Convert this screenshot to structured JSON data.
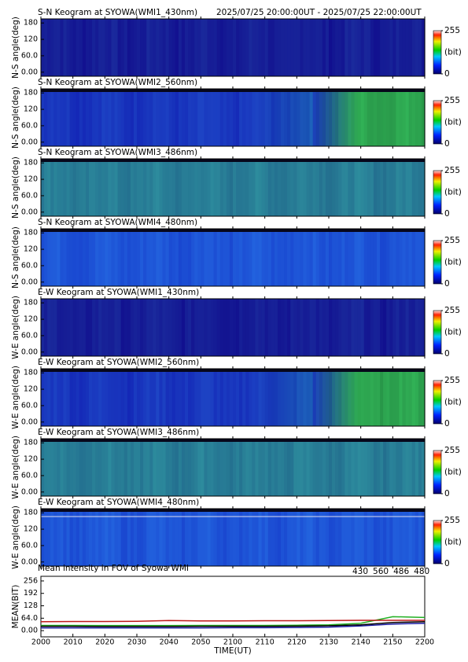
{
  "header": "2025/07/25 20:00:00UT - 2025/07/25 22:00:00UT",
  "chart_data": [
    {
      "type": "heatmap",
      "title": "S-N Keogram at SYOWA(WMI1_430nm)",
      "ylabel": "N-S angle(deg)",
      "ylim": [
        -15,
        195
      ],
      "yticks": [
        {
          "value": 0,
          "label": "0.00"
        },
        {
          "value": 60,
          "label": "60.0"
        },
        120,
        180
      ],
      "colorbar": {
        "lim": [
          0,
          255
        ],
        "ticks": [
          0,
          255
        ],
        "label": "(bit)"
      }
    },
    {
      "type": "heatmap",
      "title": "S-N Keogram at SYOWA(WMI2_560nm)",
      "ylabel": "N-S angle(deg)",
      "ylim": [
        -15,
        195
      ],
      "yticks": [
        {
          "value": 0,
          "label": "0.00"
        },
        {
          "value": 60,
          "label": "60.0"
        },
        120,
        180
      ],
      "colorbar": {
        "lim": [
          0,
          255
        ],
        "ticks": [
          0,
          255
        ],
        "label": "(bit)"
      }
    },
    {
      "type": "heatmap",
      "title": "S-N Keogram at SYOWA(WMI3_486nm)",
      "ylabel": "N-S angle(deg)",
      "ylim": [
        -15,
        195
      ],
      "yticks": [
        {
          "value": 0,
          "label": "0.00"
        },
        {
          "value": 60,
          "label": "60.0"
        },
        120,
        180
      ],
      "colorbar": {
        "lim": [
          0,
          255
        ],
        "ticks": [
          0,
          255
        ],
        "label": "(bit)"
      }
    },
    {
      "type": "heatmap",
      "title": "S-N Keogram at SYOWA(WMI4_480nm)",
      "ylabel": "N-S angle(deg)",
      "ylim": [
        -15,
        195
      ],
      "yticks": [
        {
          "value": 0,
          "label": "0.00"
        },
        {
          "value": 60,
          "label": "60.0"
        },
        120,
        180
      ],
      "colorbar": {
        "lim": [
          0,
          255
        ],
        "ticks": [
          0,
          255
        ],
        "label": "(bit)"
      }
    },
    {
      "type": "heatmap",
      "title": "E-W Keogram at SYOWA(WMI1_430nm)",
      "ylabel": "W-E angle(deg)",
      "ylim": [
        -15,
        195
      ],
      "yticks": [
        {
          "value": 0,
          "label": "0.00"
        },
        {
          "value": 60,
          "label": "60.0"
        },
        120,
        180
      ],
      "colorbar": {
        "lim": [
          0,
          255
        ],
        "ticks": [
          0,
          255
        ],
        "label": "(bit)"
      }
    },
    {
      "type": "heatmap",
      "title": "E-W Keogram at SYOWA(WMI2_560nm)",
      "ylabel": "W-E angle(deg)",
      "ylim": [
        -15,
        195
      ],
      "yticks": [
        {
          "value": 0,
          "label": "0.00"
        },
        {
          "value": 60,
          "label": "60.0"
        },
        120,
        180
      ],
      "colorbar": {
        "lim": [
          0,
          255
        ],
        "ticks": [
          0,
          255
        ],
        "label": "(bit)"
      }
    },
    {
      "type": "heatmap",
      "title": "E-W Keogram at SYOWA(WMI3_486nm)",
      "ylabel": "W-E angle(deg)",
      "ylim": [
        -15,
        195
      ],
      "yticks": [
        {
          "value": 0,
          "label": "0.00"
        },
        {
          "value": 60,
          "label": "60.0"
        },
        120,
        180
      ],
      "colorbar": {
        "lim": [
          0,
          255
        ],
        "ticks": [
          0,
          255
        ],
        "label": "(bit)"
      }
    },
    {
      "type": "heatmap",
      "title": "E-W Keogram at SYOWA(WMI4_480nm)",
      "ylabel": "W-E angle(deg)",
      "ylim": [
        -15,
        195
      ],
      "yticks": [
        {
          "value": 0,
          "label": "0.00"
        },
        {
          "value": 60,
          "label": "60.0"
        },
        120,
        180
      ],
      "colorbar": {
        "lim": [
          0,
          255
        ],
        "ticks": [
          0,
          255
        ],
        "label": "(bit)"
      }
    },
    {
      "type": "line",
      "title": "Mean intensity in FOV of Syowa WMI",
      "ylabel": "MEAN(BIT)",
      "xlabel": "TIME(UT)",
      "categories": [
        "2000",
        "2010",
        "2020",
        "2030",
        "2040",
        "2050",
        "2100",
        "2110",
        "2120",
        "2130",
        "2140",
        "2150",
        "2200"
      ],
      "ylim": [
        -32,
        280
      ],
      "yticks": [
        {
          "value": 0,
          "label": "0.00"
        },
        {
          "value": 64,
          "label": "64.0"
        },
        128,
        192,
        256
      ],
      "series": [
        {
          "name": "430",
          "color": "#1a1aa0",
          "values": [
            14,
            14,
            14,
            14,
            14,
            14,
            15,
            15,
            16,
            18,
            24,
            34,
            38
          ]
        },
        {
          "name": "560",
          "color": "#22b022",
          "values": [
            27,
            27,
            26,
            26,
            26,
            27,
            27,
            27,
            28,
            30,
            38,
            72,
            68
          ]
        },
        {
          "name": "486",
          "color": "#c01818",
          "values": [
            46,
            47,
            47,
            48,
            52,
            50,
            50,
            51,
            51,
            52,
            53,
            53,
            53
          ]
        },
        {
          "name": "480",
          "color": "#000000",
          "values": [
            22,
            22,
            21,
            21,
            21,
            22,
            22,
            22,
            23,
            25,
            30,
            42,
            46
          ]
        }
      ]
    }
  ]
}
